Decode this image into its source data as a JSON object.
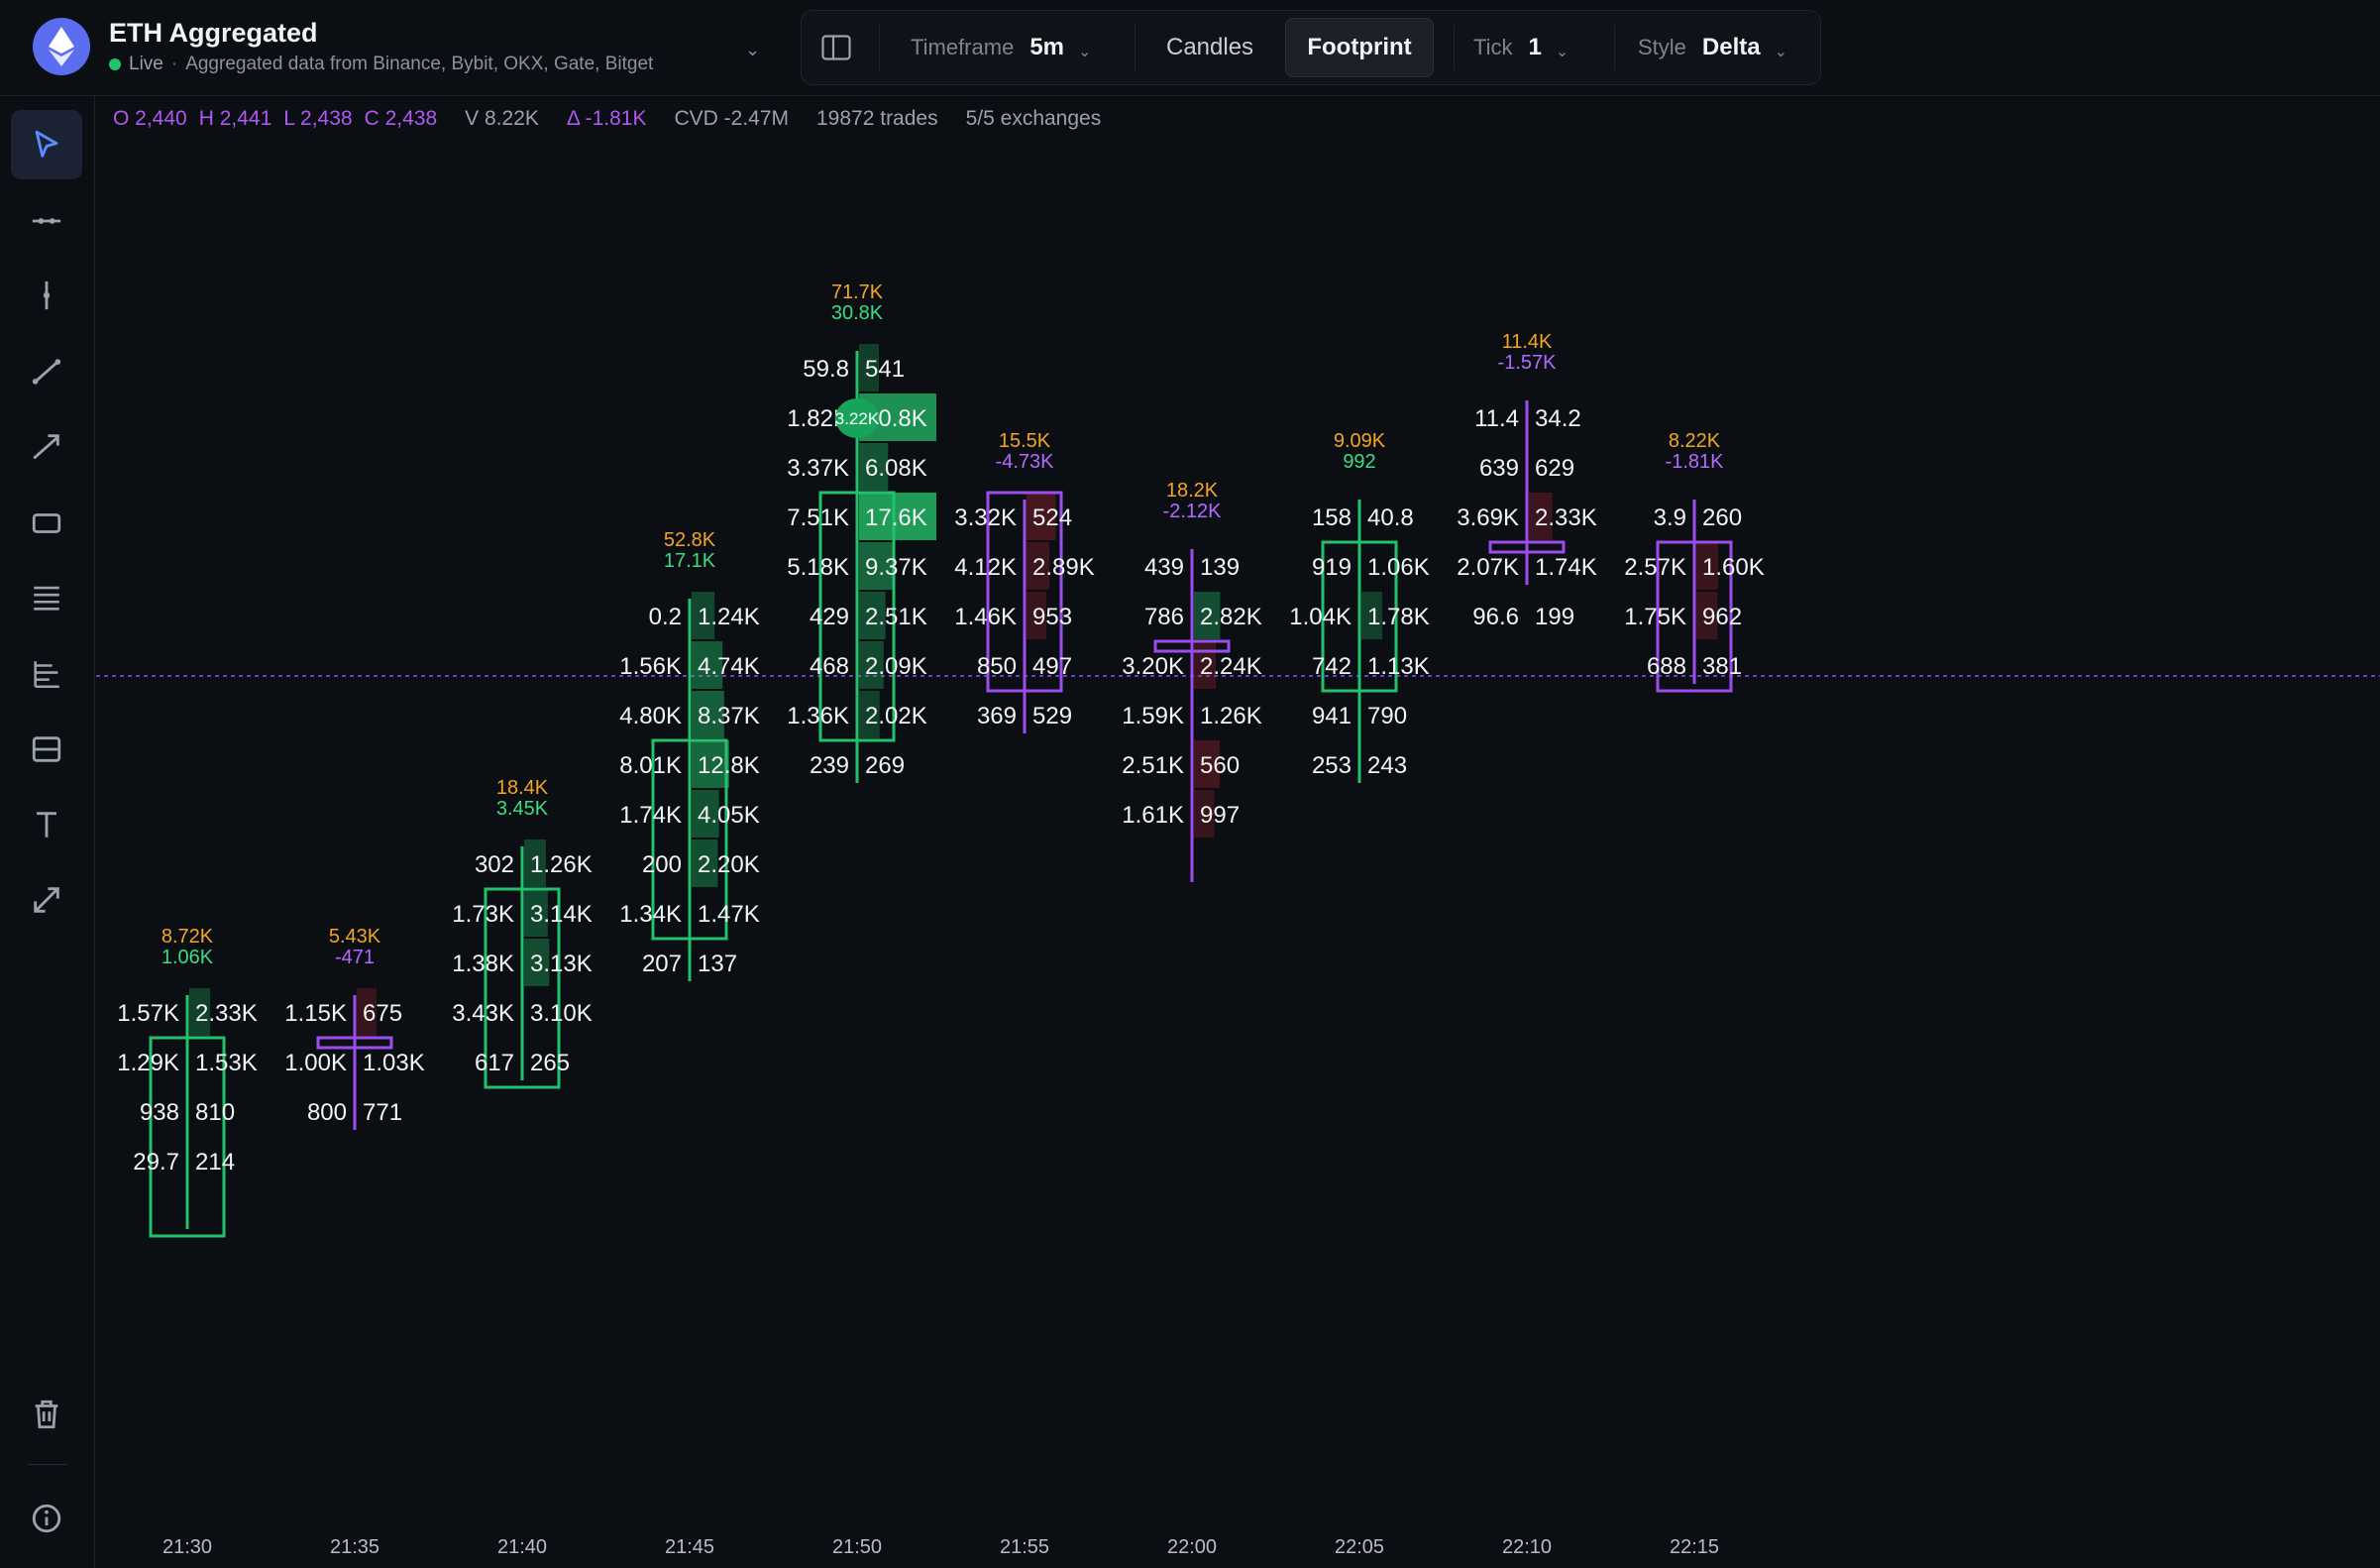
{
  "header": {
    "title": "ETH Aggregated",
    "live_label": "Live",
    "subtitle": "Aggregated data from Binance, Bybit, OKX, Gate, Bitget"
  },
  "toolbar": {
    "timeframe_label": "Timeframe",
    "timeframe_value": "5m",
    "candles_label": "Candles",
    "footprint_label": "Footprint",
    "tick_label": "Tick",
    "tick_value": "1",
    "style_label": "Style",
    "style_value": "Delta"
  },
  "sidebar": {
    "tools": [
      "cursor-icon",
      "horizontal-line-icon",
      "vertical-line-icon",
      "trend-line-icon",
      "arrow-line-icon",
      "rectangle-icon",
      "horizontal-levels-icon",
      "fib-levels-icon",
      "range-box-icon",
      "text-icon",
      "measure-icon"
    ],
    "bottom": [
      "trash-icon",
      "info-icon"
    ]
  },
  "infobar": {
    "open": "O 2,440",
    "high": "H 2,441",
    "low": "L 2,438",
    "close": "C 2,438",
    "volume": "V 8.22K",
    "delta": "Δ -1.81K",
    "cvd": "CVD -2.47M",
    "trades": "19872 trades",
    "exchanges": "5/5 exchanges"
  },
  "colors": {
    "bull": "#23c16b",
    "bear": "#9b4df0",
    "volume": "#f5a524",
    "delta_pos": "#3ddc84",
    "delta_neg": "#b36bff",
    "price_line": "#9b4df0"
  },
  "chart_data": {
    "type": "footprint",
    "x_ticks": [
      "21:30",
      "21:35",
      "21:40",
      "21:45",
      "21:50",
      "21:55",
      "22:00",
      "22:05",
      "22:10",
      "22:15"
    ],
    "candles": [
      {
        "time": "21:30",
        "volume": "8.72K",
        "delta": "1.06K",
        "dir": "up",
        "top": 4,
        "open": 3,
        "close": 0,
        "high": 4,
        "low": 0,
        "rows": [
          [
            "1.57K",
            "2.33K"
          ],
          [
            "1.29K",
            "1.53K"
          ],
          [
            "938",
            "810"
          ],
          [
            "29.7",
            "214"
          ]
        ]
      },
      {
        "time": "21:35",
        "volume": "5.43K",
        "delta": "-471",
        "dir": "down",
        "top": 4,
        "open": 3,
        "close": 3,
        "high": 4,
        "low": 2,
        "rows": [
          [
            "1.15K",
            "675"
          ],
          [
            "1.00K",
            "1.03K"
          ],
          [
            "800",
            "771"
          ]
        ]
      },
      {
        "time": "21:40",
        "volume": "18.4K",
        "delta": "3.45K",
        "dir": "up",
        "top": 7,
        "open": 3,
        "close": 6,
        "high": 7,
        "low": 3,
        "rows": [
          [
            "302",
            "1.26K"
          ],
          [
            "1.73K",
            "3.14K"
          ],
          [
            "1.38K",
            "3.13K"
          ],
          [
            "3.43K",
            "3.10K"
          ],
          [
            "617",
            "265"
          ]
        ]
      },
      {
        "time": "21:45",
        "volume": "52.8K",
        "delta": "17.1K",
        "dir": "up",
        "top": 12,
        "open": 6,
        "close": 9,
        "high": 12,
        "low": 5,
        "rows": [
          [
            "0.2",
            "1.24K"
          ],
          [
            "1.56K",
            "4.74K"
          ],
          [
            "4.80K",
            "8.37K"
          ],
          [
            "8.01K",
            "12.8K"
          ],
          [
            "1.74K",
            "4.05K"
          ],
          [
            "200",
            "2.20K"
          ],
          [
            "1.34K",
            "1.47K"
          ],
          [
            "207",
            "137"
          ]
        ]
      },
      {
        "time": "21:50",
        "volume": "71.7K",
        "delta": "30.8K",
        "dir": "up",
        "top": 17,
        "open": 10,
        "close": 14,
        "high": 17,
        "low": 9,
        "rows": [
          [
            "59.8",
            "541"
          ],
          [
            "1.82K",
            "10.8K"
          ],
          [
            "3.37K",
            "6.08K"
          ],
          [
            "7.51K",
            "17.6K"
          ],
          [
            "5.18K",
            "9.37K"
          ],
          [
            "429",
            "2.51K"
          ],
          [
            "468",
            "2.09K"
          ],
          [
            "1.36K",
            "2.02K"
          ],
          [
            "239",
            "269"
          ]
        ],
        "poc_label": "3.22K"
      },
      {
        "time": "21:55",
        "volume": "15.5K",
        "delta": "-4.73K",
        "dir": "down",
        "top": 14,
        "open": 14,
        "close": 11,
        "high": 14,
        "low": 10,
        "rows": [
          [
            "3.32K",
            "524"
          ],
          [
            "4.12K",
            "2.89K"
          ],
          [
            "1.46K",
            "953"
          ],
          [
            "850",
            "497"
          ],
          [
            "369",
            "529"
          ]
        ]
      },
      {
        "time": "22:00",
        "volume": "18.2K",
        "delta": "-2.12K",
        "dir": "down",
        "top": 13,
        "open": 11,
        "close": 11,
        "high": 13,
        "low": 7,
        "rows": [
          [
            "439",
            "139"
          ],
          [
            "786",
            "2.82K"
          ],
          [
            "3.20K",
            "2.24K"
          ],
          [
            "1.59K",
            "1.26K"
          ],
          [
            "2.51K",
            "560"
          ],
          [
            "1.61K",
            "997"
          ]
        ]
      },
      {
        "time": "22:05",
        "volume": "9.09K",
        "delta": "992",
        "dir": "up",
        "top": 14,
        "open": 11,
        "close": 13,
        "high": 14,
        "low": 9,
        "rows": [
          [
            "158",
            "40.8"
          ],
          [
            "919",
            "1.06K"
          ],
          [
            "1.04K",
            "1.78K"
          ],
          [
            "742",
            "1.13K"
          ],
          [
            "941",
            "790"
          ],
          [
            "253",
            "243"
          ]
        ]
      },
      {
        "time": "22:10",
        "volume": "11.4K",
        "delta": "-1.57K",
        "dir": "down",
        "top": 16,
        "open": 13,
        "close": 13,
        "high": 16,
        "low": 13,
        "rows": [
          [
            "11.4",
            "34.2"
          ],
          [
            "639",
            "629"
          ],
          [
            "3.69K",
            "2.33K"
          ],
          [
            "2.07K",
            "1.74K"
          ],
          [
            "96.6",
            "199"
          ]
        ]
      },
      {
        "time": "22:15",
        "volume": "8.22K",
        "delta": "-1.81K",
        "dir": "down",
        "top": 14,
        "open": 13,
        "close": 11,
        "high": 14,
        "low": 11,
        "rows": [
          [
            "3.9",
            "260"
          ],
          [
            "2.57K",
            "1.60K"
          ],
          [
            "1.75K",
            "962"
          ],
          [
            "688",
            "381"
          ]
        ]
      }
    ]
  }
}
